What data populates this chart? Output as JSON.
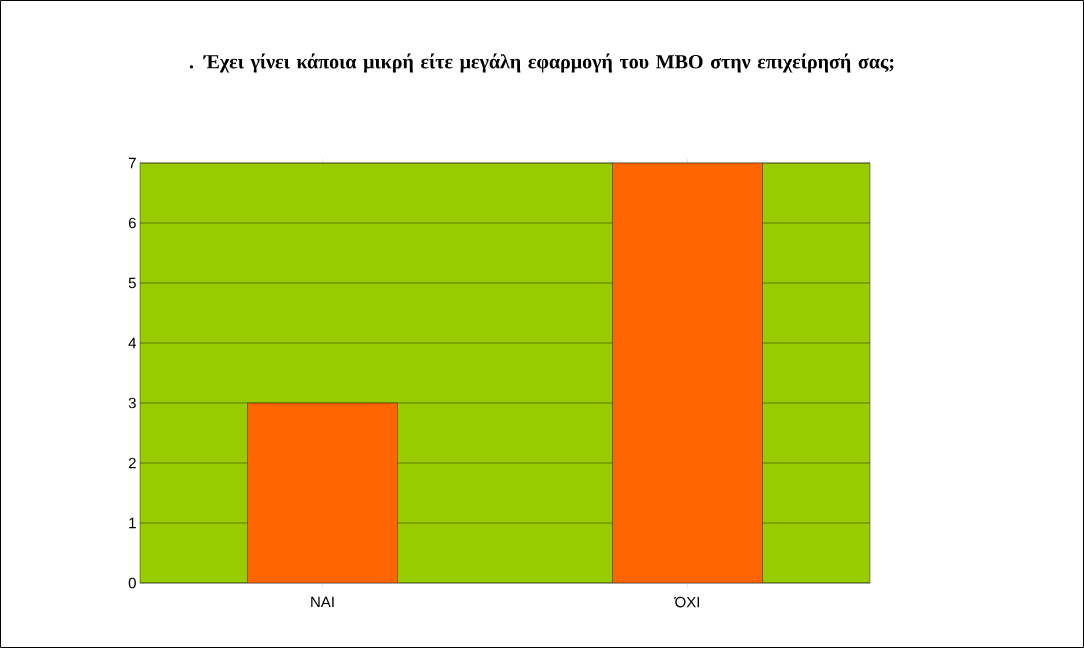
{
  "chart_data": {
    "type": "bar",
    "title": ". Έχει γίνει κάποια μικρή είτε μεγάλη εφαρμογή του MBO στην επιχείρησή σας;",
    "categories": [
      "ΝΑΙ",
      "ΌΧΙ"
    ],
    "values": [
      3,
      7
    ],
    "color": "#ff6600",
    "ylim": [
      0,
      7
    ],
    "yticks": [
      0,
      1,
      2,
      3,
      4,
      5,
      6,
      7
    ],
    "grid": "y"
  }
}
